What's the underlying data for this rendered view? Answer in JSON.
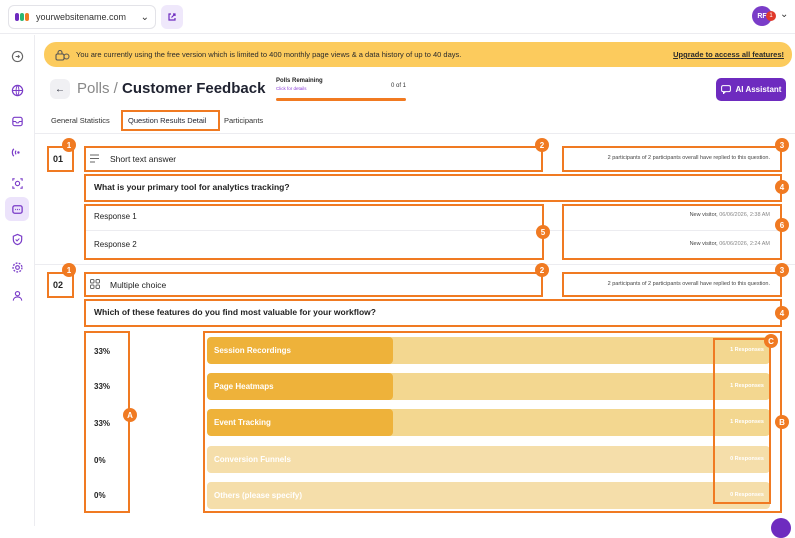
{
  "header": {
    "site_name": "yourwebsitename.com",
    "avatar_initials": "RF",
    "notification_count": "1"
  },
  "banner": {
    "message": "You are currently using the free version which is limited to 400 monthly page views & a data history of up to 40 days.",
    "upgrade_link": "Upgrade to access all features!"
  },
  "page": {
    "breadcrumb_parent": "Polls",
    "breadcrumb_sep": " / ",
    "title": "Customer Feedback",
    "polls_remaining_label": "Polls Remaining",
    "polls_remaining_sub": "Click for details",
    "polls_remaining_count": "0 of 1",
    "ai_button": "AI Assistant"
  },
  "tabs": [
    {
      "label": "General Statistics"
    },
    {
      "label": "Question Results Detail"
    },
    {
      "label": "Participants"
    }
  ],
  "questions": [
    {
      "number": "01",
      "type": "Short text answer",
      "summary": "2 participants of 2 participants overall have replied to this question.",
      "title": "What is your primary tool for analytics tracking?",
      "responses": [
        {
          "text": "Response 1",
          "who": "New visitor,",
          "time": "06/06/2026, 2:38 AM"
        },
        {
          "text": "Response 2",
          "who": "New visitor,",
          "time": "06/06/2026, 2:24 AM"
        }
      ]
    },
    {
      "number": "02",
      "type": "Multiple choice",
      "summary": "2 participants of 2 participants overall have replied to this question.",
      "title": "Which of these features do you find most valuable for your workflow?",
      "options": [
        {
          "percent": "33%",
          "fraction": 0.33,
          "label": "Session Recordings",
          "responses": "1 Responses"
        },
        {
          "percent": "33%",
          "fraction": 0.33,
          "label": "Page Heatmaps",
          "responses": "1 Responses"
        },
        {
          "percent": "33%",
          "fraction": 0.33,
          "label": "Event Tracking",
          "responses": "1 Responses"
        },
        {
          "percent": "0%",
          "fraction": 0,
          "label": "Conversion Funnels",
          "responses": "0 Responses"
        },
        {
          "percent": "0%",
          "fraction": 0,
          "label": "Others (please specify)",
          "responses": "0 Responses"
        }
      ]
    }
  ],
  "annotations": {
    "b1": "1",
    "b2": "2",
    "b3": "3",
    "b4": "4",
    "b5": "5",
    "b6": "6",
    "bA": "A",
    "bB": "B",
    "bC": "C"
  },
  "colors": {
    "accent": "#6e2bbf",
    "annotation": "#f07a22",
    "bar_fill": "#eeb23a",
    "bar_track": "#f3d790",
    "banner": "#fccb5d"
  }
}
